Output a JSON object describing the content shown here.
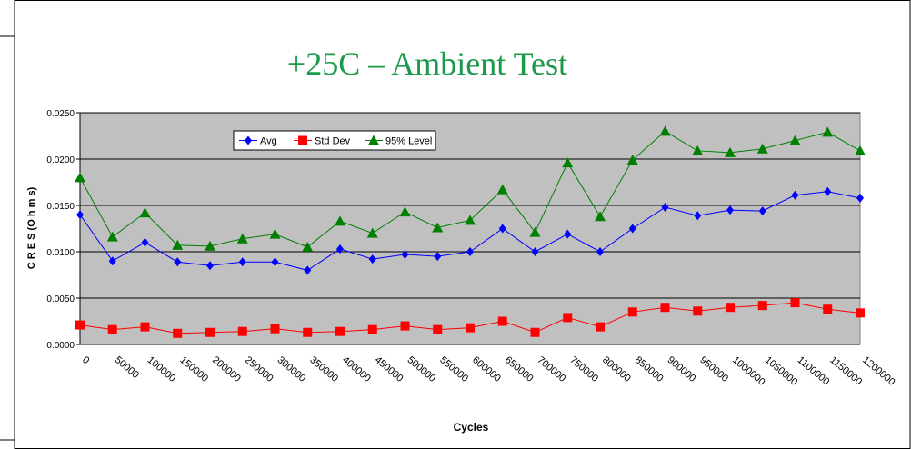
{
  "chart_data": {
    "type": "line",
    "title": "+25C – Ambient Test",
    "x_label": "Cycles",
    "y_label": "C R E S (O h m s)",
    "categories": [
      "0",
      "50000",
      "100000",
      "150000",
      "200000",
      "250000",
      "300000",
      "350000",
      "400000",
      "450000",
      "500000",
      "550000",
      "600000",
      "650000",
      "700000",
      "750000",
      "800000",
      "850000",
      "900000",
      "950000",
      "1000000",
      "1050000",
      "1100000",
      "1150000",
      "1200000"
    ],
    "series": [
      {
        "name": "Avg",
        "color": "#0000ff",
        "marker": "diamond",
        "values": [
          0.014,
          0.009,
          0.011,
          0.0089,
          0.0085,
          0.0089,
          0.0089,
          0.008,
          0.0103,
          0.0092,
          0.0097,
          0.0095,
          0.01,
          0.0125,
          0.01,
          0.0119,
          0.01,
          0.0125,
          0.0148,
          0.0139,
          0.0145,
          0.0144,
          0.0161,
          0.0165,
          0.0158
        ]
      },
      {
        "name": "Std Dev",
        "color": "#ff0000",
        "marker": "square",
        "values": [
          0.0021,
          0.0016,
          0.0019,
          0.0012,
          0.0013,
          0.0014,
          0.0017,
          0.0013,
          0.0014,
          0.0016,
          0.002,
          0.0016,
          0.0018,
          0.0025,
          0.0013,
          0.0029,
          0.0019,
          0.0035,
          0.004,
          0.0036,
          0.004,
          0.0042,
          0.0045,
          0.0038,
          0.0034
        ]
      },
      {
        "name": "95% Level",
        "color": "#008000",
        "marker": "triangle",
        "values": [
          0.018,
          0.0116,
          0.0142,
          0.0107,
          0.0106,
          0.0114,
          0.0119,
          0.0105,
          0.0133,
          0.012,
          0.0143,
          0.0126,
          0.0134,
          0.0167,
          0.0121,
          0.0196,
          0.0138,
          0.0199,
          0.023,
          0.0209,
          0.0207,
          0.0211,
          0.022,
          0.0229,
          0.0209
        ]
      }
    ],
    "ylim": [
      0,
      0.025
    ],
    "yticks": [
      {
        "value": 0,
        "label": "0.0000"
      },
      {
        "value": 0.005,
        "label": "0.0050"
      },
      {
        "value": 0.01,
        "label": "0.0100"
      },
      {
        "value": 0.015,
        "label": "0.0150"
      },
      {
        "value": 0.02,
        "label": "0.0200"
      },
      {
        "value": 0.025,
        "label": "0.0250"
      }
    ],
    "grid": true,
    "legend": "top-left"
  }
}
